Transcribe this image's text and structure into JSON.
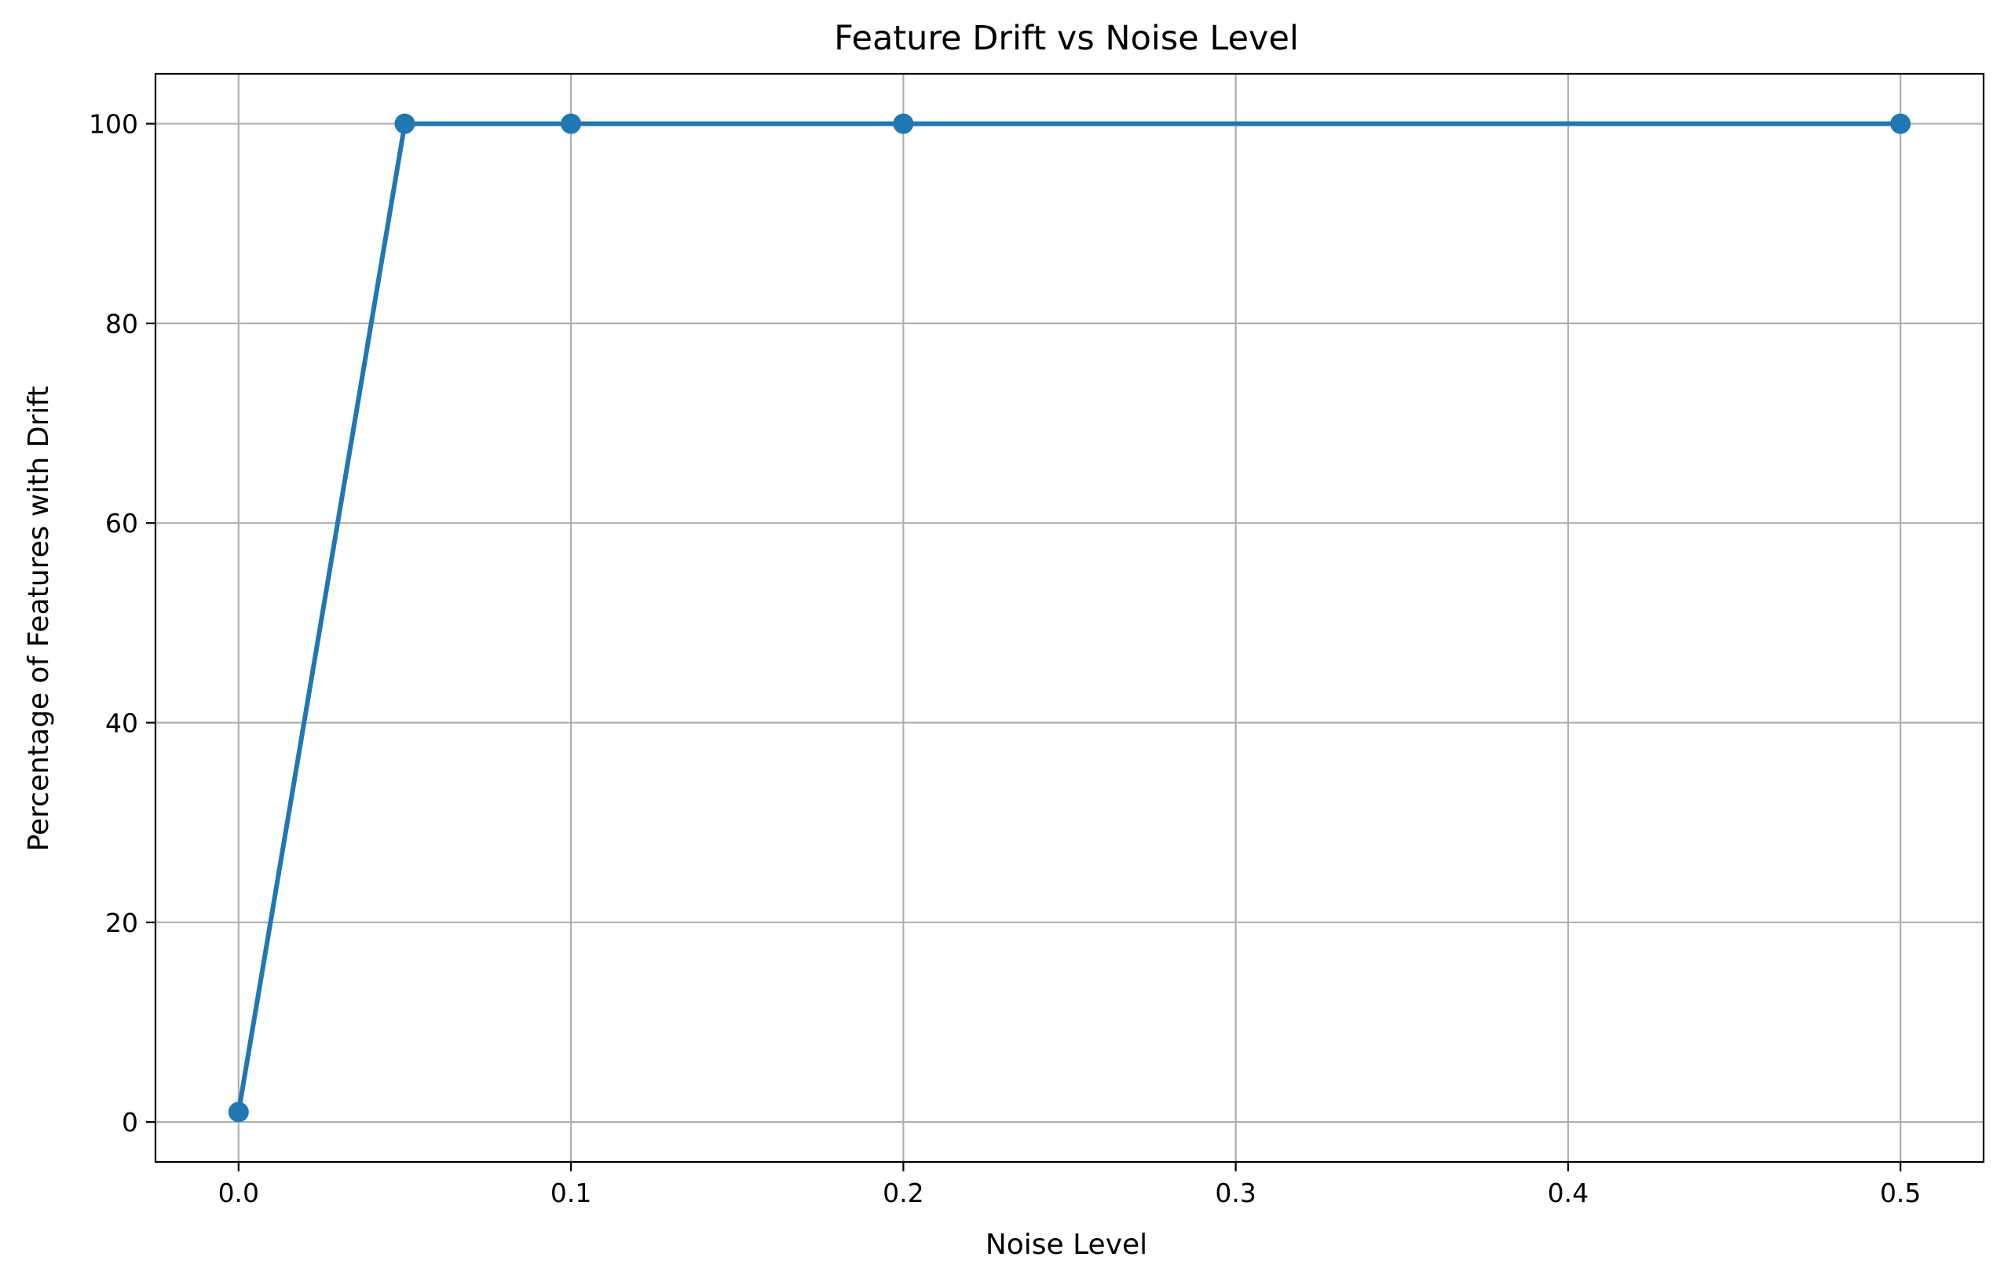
{
  "chart_data": {
    "type": "line",
    "title": "Feature Drift vs Noise Level",
    "xlabel": "Noise Level",
    "ylabel": "Percentage of Features with Drift",
    "xlim": [
      -0.025,
      0.525
    ],
    "ylim": [
      -4,
      105
    ],
    "x_ticks": [
      0.0,
      0.1,
      0.2,
      0.3,
      0.4,
      0.5
    ],
    "x_tick_labels": [
      "0.0",
      "0.1",
      "0.2",
      "0.3",
      "0.4",
      "0.5"
    ],
    "y_ticks": [
      0,
      20,
      40,
      60,
      80,
      100
    ],
    "y_tick_labels": [
      "0",
      "20",
      "40",
      "60",
      "80",
      "100"
    ],
    "grid": true,
    "series": [
      {
        "x": [
          0.0,
          0.05,
          0.1,
          0.2,
          0.5
        ],
        "values": [
          1,
          100,
          100,
          100,
          100
        ],
        "color": "#1f77b4",
        "marker": "circle"
      }
    ]
  }
}
